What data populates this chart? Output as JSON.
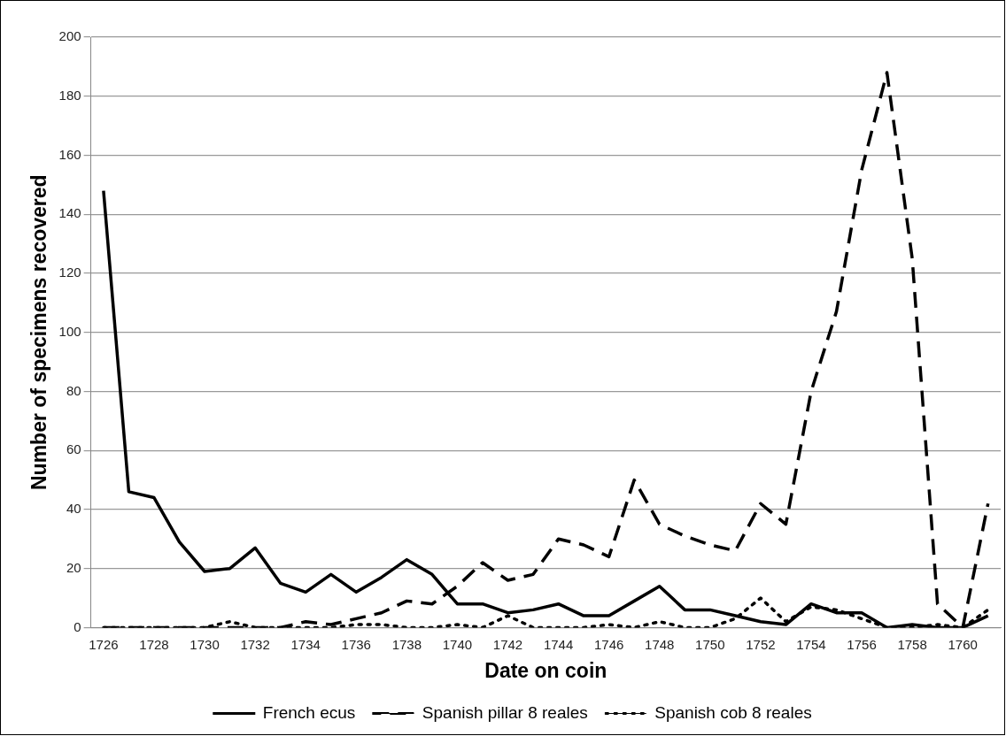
{
  "chart_data": {
    "type": "line",
    "xlabel": "Date on coin",
    "ylabel": "Number of specimens recovered",
    "categories": [
      "1726",
      null,
      "1728",
      null,
      "1730",
      null,
      "1732",
      null,
      "1734",
      null,
      "1736",
      null,
      "1738",
      null,
      "1740",
      null,
      "1742",
      null,
      "1744",
      null,
      "1746",
      null,
      "1748",
      null,
      "1750",
      null,
      "1752",
      null,
      "1754",
      null,
      "1756",
      null,
      "1758",
      null,
      "1760",
      null
    ],
    "series": [
      {
        "name": "French ecus",
        "color": "#000000",
        "line_style": "solid",
        "values": [
          148,
          46,
          44,
          29,
          19,
          20,
          27,
          15,
          12,
          18,
          12,
          17,
          23,
          18,
          8,
          8,
          5,
          6,
          8,
          4,
          4,
          9,
          14,
          6,
          6,
          4,
          2,
          1,
          8,
          5,
          5,
          0,
          1,
          0,
          0,
          4
        ]
      },
      {
        "name": "Spanish pillar 8 reales",
        "color": "#000000",
        "line_style": "dashed",
        "values": [
          0,
          0,
          0,
          0,
          0,
          0,
          0,
          0,
          2,
          1,
          3,
          5,
          9,
          8,
          14,
          22,
          16,
          18,
          30,
          28,
          24,
          50,
          35,
          31,
          28,
          26,
          42,
          35,
          80,
          107,
          155,
          188,
          125,
          8,
          0,
          42
        ]
      },
      {
        "name": "Spanish cob 8 reales",
        "color": "#000000",
        "line_style": "dotted",
        "values": [
          0,
          0,
          0,
          0,
          0,
          2,
          0,
          0,
          0,
          0,
          1,
          1,
          0,
          0,
          1,
          0,
          4,
          0,
          0,
          0,
          1,
          0,
          2,
          0,
          0,
          3,
          10,
          2,
          7,
          6,
          3,
          0,
          0,
          1,
          0,
          6
        ]
      }
    ],
    "ylim": [
      0,
      200
    ],
    "yticks": [
      0,
      20,
      40,
      60,
      80,
      100,
      120,
      140,
      160,
      180,
      200
    ],
    "grid": "y",
    "legend": "bottom",
    "marker": "none"
  }
}
